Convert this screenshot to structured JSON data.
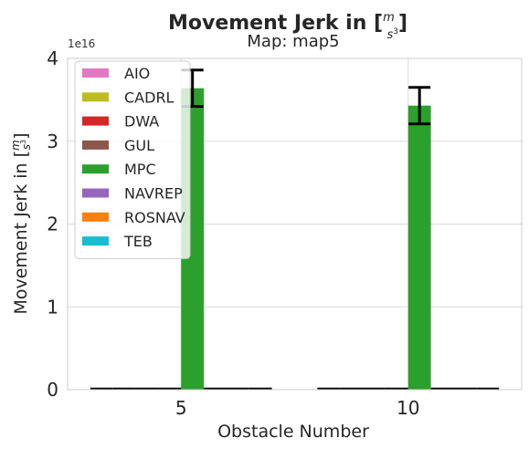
{
  "chart_data": {
    "type": "bar",
    "title": "Movement Jerk in [m/s³]",
    "title_parts": {
      "prefix": "Movement Jerk in [",
      "num": "m",
      "den": "s",
      "den_exp": "3",
      "suffix": "]"
    },
    "subtitle": "Map: map5",
    "xlabel": "Obstacle Number",
    "ylabel": "Movement Jerk in [m/s³]",
    "ylabel_parts": {
      "prefix": "Movement Jerk in [",
      "num": "m",
      "den": "s",
      "den_exp": "3",
      "suffix": "]"
    },
    "y_offset_label": "1e16",
    "categories": [
      "5",
      "10"
    ],
    "ylim": [
      0,
      4.0
    ],
    "yticks": [
      "0",
      "1",
      "2",
      "3",
      "4"
    ],
    "grid": true,
    "legend_position": "top-left",
    "series": [
      {
        "name": "AIO",
        "color": "#e377c2",
        "values": [
          0,
          0
        ],
        "errors": [
          0,
          0
        ]
      },
      {
        "name": "CADRL",
        "color": "#bcbd22",
        "values": [
          0,
          0
        ],
        "errors": [
          0,
          0
        ]
      },
      {
        "name": "DWA",
        "color": "#d62728",
        "values": [
          0,
          0
        ],
        "errors": [
          0,
          0
        ]
      },
      {
        "name": "GUL",
        "color": "#8c564b",
        "values": [
          0,
          0
        ],
        "errors": [
          0,
          0
        ]
      },
      {
        "name": "MPC",
        "color": "#2ca02c",
        "values": [
          3.64,
          3.43
        ],
        "errors": [
          0.22,
          0.22
        ]
      },
      {
        "name": "NAVREP",
        "color": "#9467bd",
        "values": [
          0,
          0
        ],
        "errors": [
          0,
          0
        ]
      },
      {
        "name": "ROSNAV",
        "color": "#ff7f0e",
        "values": [
          0,
          0
        ],
        "errors": [
          0,
          0
        ]
      },
      {
        "name": "TEB",
        "color": "#17becf",
        "values": [
          0,
          0
        ],
        "errors": [
          0,
          0
        ]
      }
    ]
  }
}
